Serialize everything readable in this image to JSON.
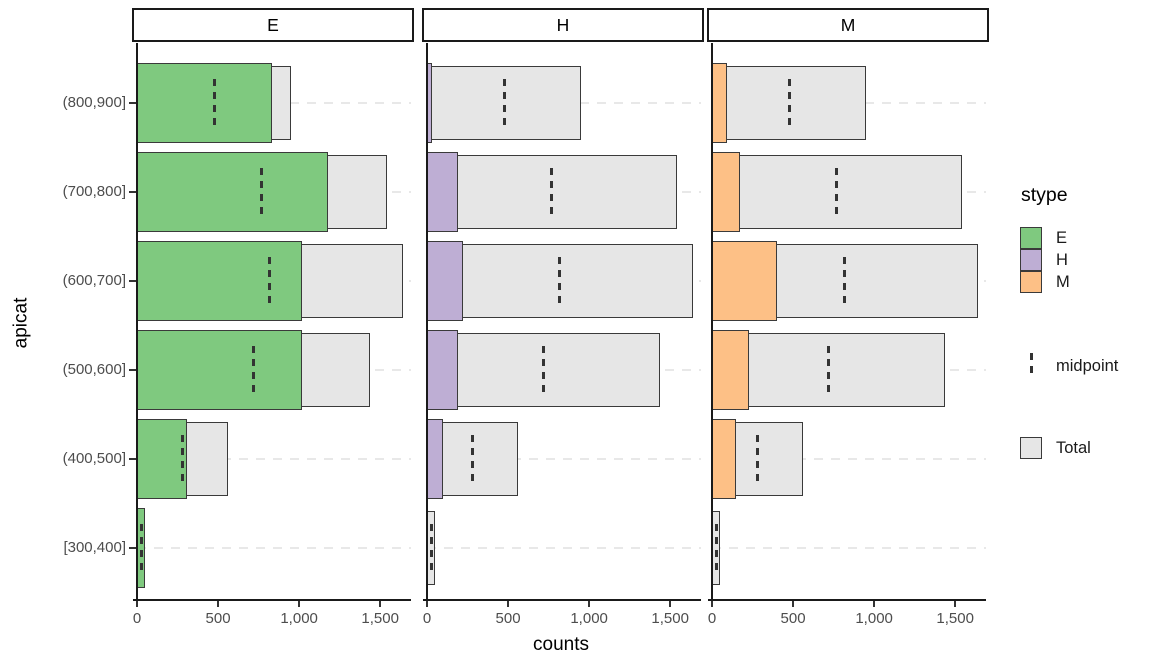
{
  "figure": {
    "xlabel": "counts",
    "ylabel": "apicat",
    "legend": {
      "stype_title": "stype",
      "stype_entries": [
        {
          "label": "E",
          "color": "#7FC97F"
        },
        {
          "label": "H",
          "color": "#BEAED4"
        },
        {
          "label": "M",
          "color": "#FDC086"
        }
      ],
      "midpoint_label": "midpoint",
      "total_label": "Total",
      "total_color": "#E6E6E6"
    }
  },
  "chart_data": {
    "type": "bar",
    "orientation": "horizontal",
    "facet_variable": "stype",
    "facets": [
      "E",
      "H",
      "M"
    ],
    "categories": [
      "(800,900]",
      "(700,800]",
      "(600,700]",
      "(500,600]",
      "(400,500]",
      "[300,400]"
    ],
    "xlabel": "counts",
    "ylabel": "apicat",
    "xlim": [
      0,
      1690
    ],
    "x_ticks": [
      {
        "value": 0,
        "label": "0"
      },
      {
        "value": 500,
        "label": "500"
      },
      {
        "value": 1000,
        "label": "1,000"
      },
      {
        "value": 1500,
        "label": "1,500"
      }
    ],
    "series": [
      {
        "name": "E",
        "color": "#7FC97F",
        "values": [
          830,
          1180,
          1020,
          1020,
          310,
          50
        ]
      },
      {
        "name": "H",
        "color": "#BEAED4",
        "values": [
          30,
          190,
          220,
          190,
          100,
          0
        ]
      },
      {
        "name": "M",
        "color": "#FDC086",
        "values": [
          90,
          170,
          400,
          230,
          150,
          0
        ]
      }
    ],
    "totals": [
      950,
      1540,
      1640,
      1440,
      560,
      50
    ],
    "midpoints": [
      475,
      770,
      820,
      720,
      280,
      25
    ],
    "total_fill": "#E6E6E6",
    "bar_border": "#3A3A3A",
    "grid": "dashed-horizontal-per-category",
    "legend_position": "right"
  }
}
